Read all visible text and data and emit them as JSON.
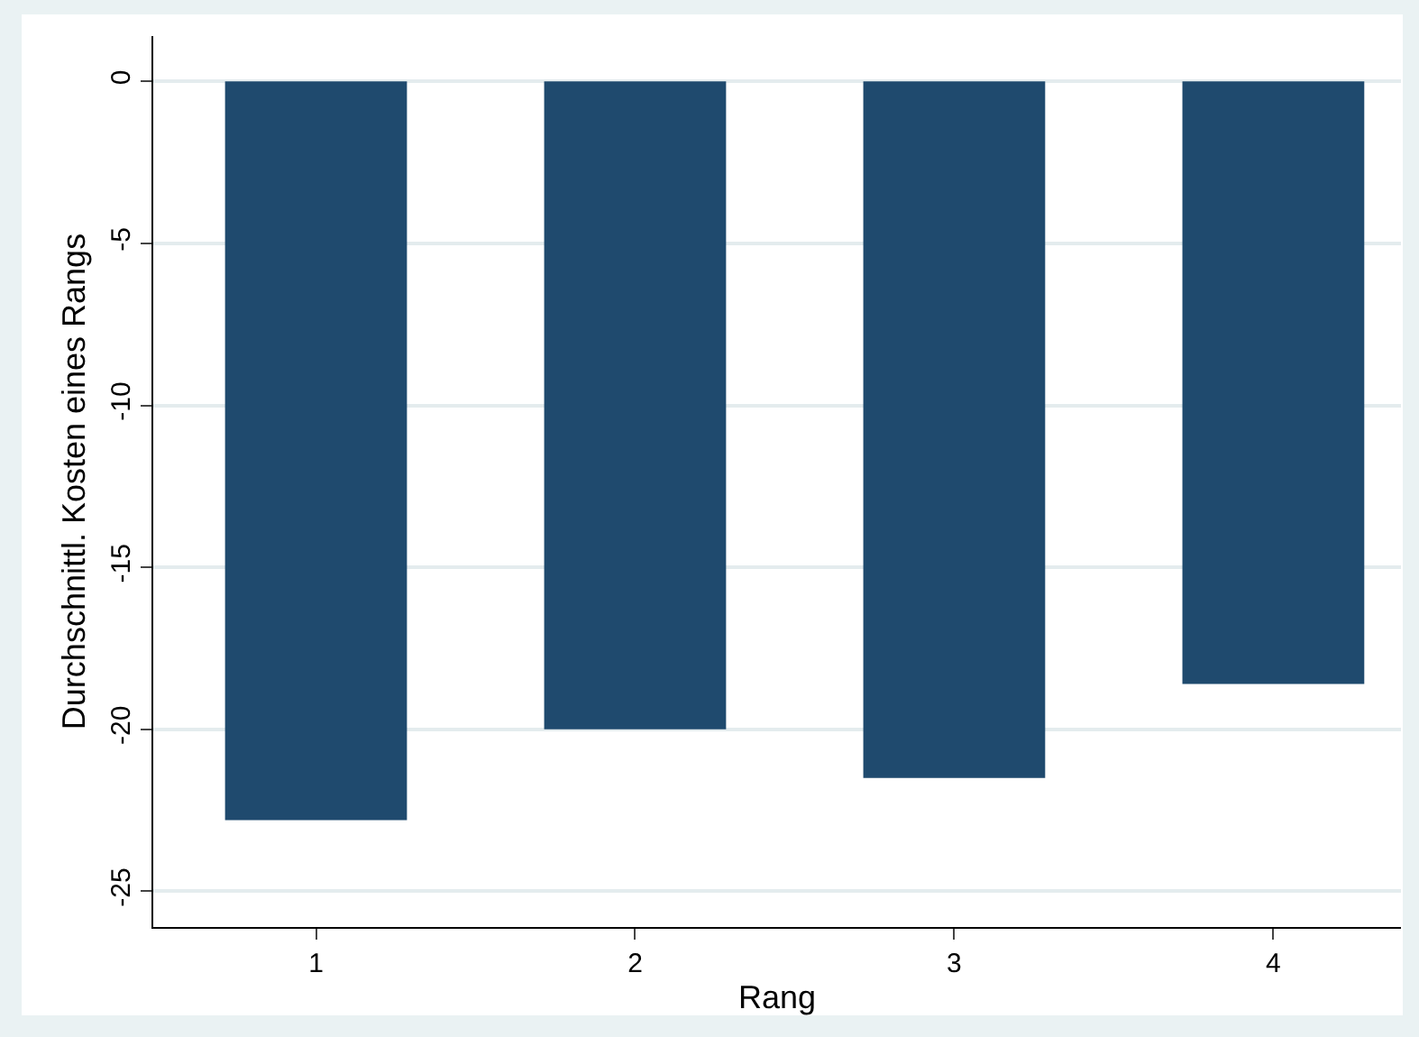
{
  "chart_data": {
    "type": "bar",
    "xlabel": "Rang",
    "ylabel": "Durchschnittl. Kosten eines Rangs",
    "x": [
      1,
      2,
      3,
      4
    ],
    "values": [
      -22.8,
      -20.0,
      -21.5,
      -18.6
    ],
    "color": "#1f4a6e",
    "xlim": [
      0.49,
      4.4
    ],
    "xticks": [
      1,
      2,
      3,
      4
    ],
    "ylim": [
      -26.1,
      1.4
    ],
    "yticks": [
      -25,
      -20,
      -15,
      -10,
      -5,
      0
    ],
    "grid": "y",
    "legend": false
  }
}
